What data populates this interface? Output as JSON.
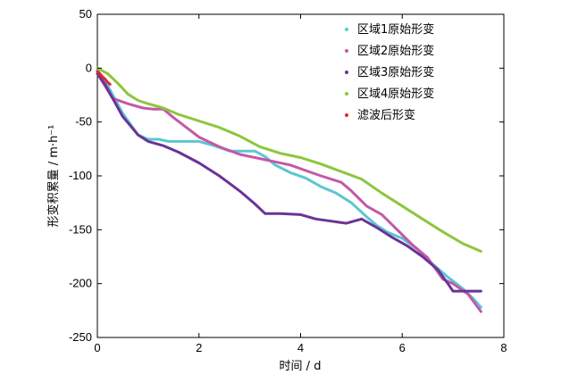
{
  "chart_data": {
    "type": "line",
    "xlabel": "时间 / d",
    "ylabel": "形变积累量 / m·h⁻¹",
    "xlim": [
      0,
      8
    ],
    "ylim": [
      -250,
      50
    ],
    "xticks": [
      0,
      2,
      4,
      6,
      8
    ],
    "yticks": [
      50,
      0,
      -50,
      -100,
      -150,
      -200,
      -250
    ],
    "grid": false,
    "legend_position": "top-right",
    "series": [
      {
        "name": "区域1原始形变",
        "color": "#5bc7d3",
        "x": [
          0,
          0.2,
          0.5,
          0.8,
          1.0,
          1.2,
          1.4,
          1.6,
          2.0,
          2.3,
          2.6,
          2.9,
          3.1,
          3.3,
          3.5,
          3.8,
          4.1,
          4.4,
          4.7,
          5.0,
          5.3,
          5.5,
          5.7,
          6.0,
          6.3,
          6.6,
          6.9,
          7.2,
          7.4,
          7.55
        ],
        "y": [
          -2,
          -16,
          -42,
          -62,
          -66,
          -66,
          -68,
          -68,
          -68,
          -72,
          -77,
          -77,
          -77,
          -82,
          -90,
          -97,
          -102,
          -110,
          -116,
          -125,
          -138,
          -146,
          -152,
          -158,
          -168,
          -182,
          -194,
          -205,
          -214,
          -222
        ]
      },
      {
        "name": "区域2原始形变",
        "color": "#c458a7",
        "x": [
          0,
          0.3,
          0.6,
          0.9,
          1.1,
          1.3,
          1.5,
          2.0,
          2.4,
          2.8,
          3.0,
          3.3,
          3.5,
          3.8,
          4.1,
          4.4,
          4.8,
          5.0,
          5.3,
          5.6,
          5.9,
          6.2,
          6.5,
          6.8,
          7.0,
          7.3,
          7.55
        ],
        "y": [
          -5,
          -28,
          -33,
          -37,
          -38,
          -38,
          -46,
          -64,
          -73,
          -80,
          -82,
          -85,
          -87,
          -90,
          -95,
          -100,
          -106,
          -114,
          -128,
          -136,
          -150,
          -164,
          -176,
          -196,
          -200,
          -210,
          -226
        ]
      },
      {
        "name": "区域3原始形变",
        "color": "#6a3496",
        "x": [
          0,
          0.15,
          0.3,
          0.5,
          0.8,
          1.0,
          1.3,
          1.6,
          2.0,
          2.4,
          2.8,
          3.1,
          3.3,
          3.6,
          4.0,
          4.3,
          4.6,
          4.9,
          5.2,
          5.5,
          5.8,
          6.1,
          6.4,
          6.7,
          6.9,
          7.0,
          7.2,
          7.55
        ],
        "y": [
          -5,
          -15,
          -28,
          -45,
          -62,
          -68,
          -72,
          -78,
          -88,
          -100,
          -114,
          -126,
          -135,
          -135,
          -136,
          -140,
          -142,
          -144,
          -140,
          -148,
          -157,
          -165,
          -175,
          -187,
          -200,
          -207,
          -207,
          -207
        ]
      },
      {
        "name": "区域4原始形变",
        "color": "#8cc63e",
        "x": [
          0,
          0.2,
          0.4,
          0.6,
          0.8,
          1.0,
          1.3,
          1.6,
          2.0,
          2.4,
          2.8,
          3.2,
          3.6,
          4.0,
          4.4,
          4.8,
          5.2,
          5.6,
          6.0,
          6.4,
          6.8,
          7.2,
          7.55
        ],
        "y": [
          0,
          -5,
          -14,
          -24,
          -30,
          -33,
          -37,
          -43,
          -49,
          -55,
          -63,
          -73,
          -79,
          -83,
          -89,
          -96,
          -103,
          -116,
          -128,
          -140,
          -152,
          -163,
          -170
        ]
      },
      {
        "name": "滤波后形变",
        "color": "#e0282c",
        "x": [
          0,
          0.05,
          0.1,
          0.15,
          0.2,
          0.25
        ],
        "y": [
          -3,
          -5,
          -8,
          -10,
          -13,
          -15
        ]
      }
    ]
  }
}
